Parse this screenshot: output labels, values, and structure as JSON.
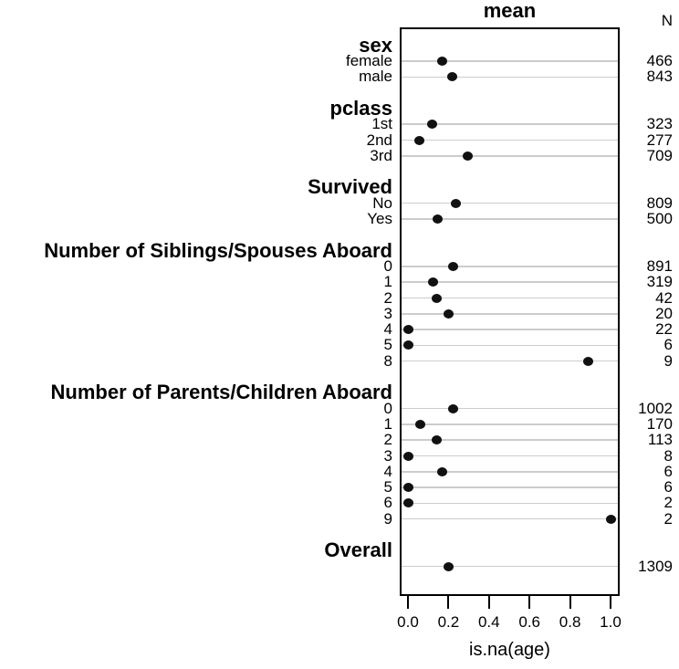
{
  "chart_data": {
    "type": "scatter",
    "variant": "dot-chart",
    "title": "mean",
    "xlabel": "is.na(age)",
    "n_header": "N",
    "xlim": [
      0.0,
      1.0
    ],
    "xticks": [
      0.0,
      0.2,
      0.4,
      0.6,
      0.8,
      1.0
    ],
    "xtick_labels": [
      "0.0",
      "0.2",
      "0.4",
      "0.6",
      "0.8",
      "1.0"
    ],
    "grid": true,
    "legend": "none",
    "sections": [
      {
        "header": "sex",
        "rows": [
          {
            "label": "female",
            "mean": 0.167,
            "n": 466
          },
          {
            "label": "male",
            "mean": 0.219,
            "n": 843
          }
        ]
      },
      {
        "header": "pclass",
        "rows": [
          {
            "label": "1st",
            "mean": 0.121,
            "n": 323
          },
          {
            "label": "2nd",
            "mean": 0.058,
            "n": 277
          },
          {
            "label": "3rd",
            "mean": 0.293,
            "n": 709
          }
        ]
      },
      {
        "header": "Survived",
        "rows": [
          {
            "label": "No",
            "mean": 0.235,
            "n": 809
          },
          {
            "label": "Yes",
            "mean": 0.146,
            "n": 500
          }
        ]
      },
      {
        "header": "Number of Siblings/Spouses Aboard",
        "rows": [
          {
            "label": "0",
            "mean": 0.221,
            "n": 891
          },
          {
            "label": "1",
            "mean": 0.125,
            "n": 319
          },
          {
            "label": "2",
            "mean": 0.143,
            "n": 42
          },
          {
            "label": "3",
            "mean": 0.2,
            "n": 20
          },
          {
            "label": "4",
            "mean": 0.0,
            "n": 22
          },
          {
            "label": "5",
            "mean": 0.0,
            "n": 6
          },
          {
            "label": "8",
            "mean": 0.889,
            "n": 9
          }
        ]
      },
      {
        "header": "Number of Parents/Children Aboard",
        "rows": [
          {
            "label": "0",
            "mean": 0.223,
            "n": 1002
          },
          {
            "label": "1",
            "mean": 0.059,
            "n": 170
          },
          {
            "label": "2",
            "mean": 0.142,
            "n": 113
          },
          {
            "label": "3",
            "mean": 0.0,
            "n": 8
          },
          {
            "label": "4",
            "mean": 0.167,
            "n": 6
          },
          {
            "label": "5",
            "mean": 0.0,
            "n": 6
          },
          {
            "label": "6",
            "mean": 0.0,
            "n": 2
          },
          {
            "label": "9",
            "mean": 1.0,
            "n": 2
          }
        ]
      },
      {
        "header": "Overall",
        "rows": [
          {
            "label": "",
            "mean": 0.201,
            "n": 1309
          }
        ]
      }
    ],
    "colors": {
      "dot": "#111111",
      "gridline": "#cccccc",
      "text": "#000000",
      "box_border": "#000000",
      "background": "#ffffff"
    }
  }
}
